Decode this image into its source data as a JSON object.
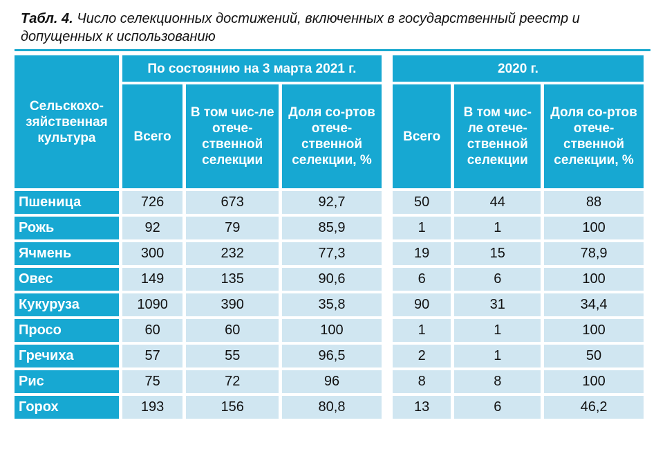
{
  "caption": {
    "label": "Табл. 4.",
    "text": " Число селекционных достижений, включенных в государственный реестр и допущенных к использованию"
  },
  "table": {
    "crop_header": "Сельскохо-зяйственная культура",
    "group_2021": "По состоянию на 3 марта 2021 г.",
    "group_2020": "2020 г.",
    "col_total": "Всего",
    "col_domestic": "В том чис-ле отече-ственной селекции",
    "col_share": "Доля со-ртов отече-ственной селекции, %",
    "col_total_2020": "Всего",
    "col_domestic_2020": "В том чис-ле отече-ственной селекции",
    "col_share_2020": "Доля со-ртов отече-ственной селекции, %",
    "rows": [
      {
        "crop": "Пшеница",
        "total": "726",
        "domestic": "673",
        "share": "92,7",
        "total_2020": "50",
        "domestic_2020": "44",
        "share_2020": "88"
      },
      {
        "crop": "Рожь",
        "total": "92",
        "domestic": "79",
        "share": "85,9",
        "total_2020": "1",
        "domestic_2020": "1",
        "share_2020": "100"
      },
      {
        "crop": "Ячмень",
        "total": "300",
        "domestic": "232",
        "share": "77,3",
        "total_2020": "19",
        "domestic_2020": "15",
        "share_2020": "78,9"
      },
      {
        "crop": "Овес",
        "total": "149",
        "domestic": "135",
        "share": "90,6",
        "total_2020": "6",
        "domestic_2020": "6",
        "share_2020": "100"
      },
      {
        "crop": "Кукуруза",
        "total": "1090",
        "domestic": "390",
        "share": "35,8",
        "total_2020": "90",
        "domestic_2020": "31",
        "share_2020": "34,4"
      },
      {
        "crop": "Просо",
        "total": "60",
        "domestic": "60",
        "share": "100",
        "total_2020": "1",
        "domestic_2020": "1",
        "share_2020": "100"
      },
      {
        "crop": "Гречиха",
        "total": "57",
        "domestic": "55",
        "share": "96,5",
        "total_2020": "2",
        "domestic_2020": "1",
        "share_2020": "50"
      },
      {
        "crop": "Рис",
        "total": "75",
        "domestic": "72",
        "share": "96",
        "total_2020": "8",
        "domestic_2020": "8",
        "share_2020": "100"
      },
      {
        "crop": "Горох",
        "total": "193",
        "domestic": "156",
        "share": "80,8",
        "total_2020": "13",
        "domestic_2020": "6",
        "share_2020": "46,2"
      }
    ]
  },
  "colors": {
    "header": "#17a8d2",
    "cell": "#d0e6f1",
    "text": "#111111"
  }
}
